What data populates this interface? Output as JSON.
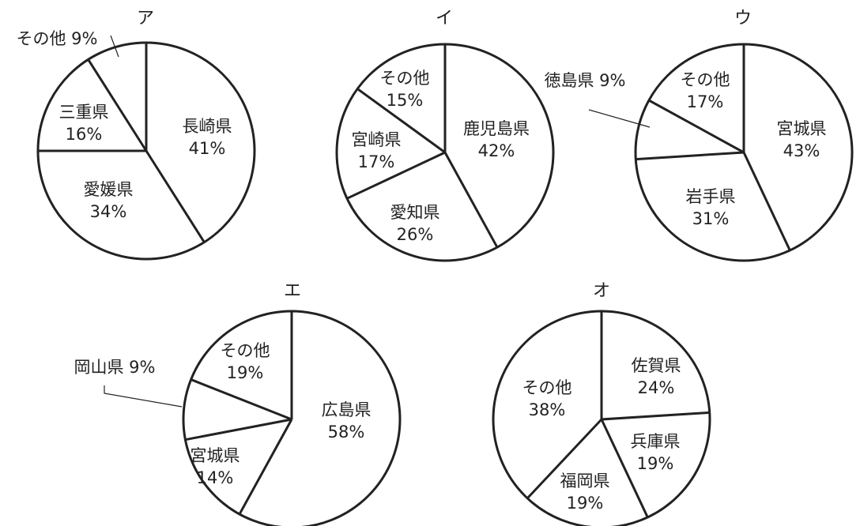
{
  "chart_data": [
    {
      "type": "pie",
      "title": "ア",
      "slices": [
        {
          "label": "長崎県",
          "value": 41
        },
        {
          "label": "愛媛県",
          "value": 34
        },
        {
          "label": "三重県",
          "value": 16
        },
        {
          "label": "その他",
          "value": 9
        }
      ],
      "slice_labels": [
        "長崎県",
        "41%",
        "愛媛県",
        "34%",
        "三重県",
        "16%"
      ],
      "callout_label": "その他 9%"
    },
    {
      "type": "pie",
      "title": "イ",
      "slices": [
        {
          "label": "鹿児島県",
          "value": 42
        },
        {
          "label": "愛知県",
          "value": 26
        },
        {
          "label": "宮崎県",
          "value": 17
        },
        {
          "label": "その他",
          "value": 15
        }
      ],
      "slice_labels": [
        "鹿児島県",
        "42%",
        "愛知県",
        "26%",
        "宮崎県",
        "17%",
        "その他",
        "15%"
      ]
    },
    {
      "type": "pie",
      "title": "ウ",
      "slices": [
        {
          "label": "宮城県",
          "value": 43
        },
        {
          "label": "岩手県",
          "value": 31
        },
        {
          "label": "徳島県",
          "value": 9
        },
        {
          "label": "その他",
          "value": 17
        }
      ],
      "slice_labels": [
        "宮城県",
        "43%",
        "岩手県",
        "31%",
        "その他",
        "17%"
      ],
      "callout_label": "徳島県 9%"
    },
    {
      "type": "pie",
      "title": "エ",
      "slices": [
        {
          "label": "広島県",
          "value": 58
        },
        {
          "label": "宮城県",
          "value": 14
        },
        {
          "label": "岡山県",
          "value": 9
        },
        {
          "label": "その他",
          "value": 19
        }
      ],
      "slice_labels": [
        "広島県",
        "58%",
        "宮城県",
        "14%",
        "その他",
        "19%"
      ],
      "callout_label": "岡山県 9%"
    },
    {
      "type": "pie",
      "title": "オ",
      "slices": [
        {
          "label": "佐賀県",
          "value": 24
        },
        {
          "label": "兵庫県",
          "value": 19
        },
        {
          "label": "福岡県",
          "value": 19
        },
        {
          "label": "その他",
          "value": 38
        }
      ],
      "slice_labels": [
        "佐賀県",
        "24%",
        "兵庫県",
        "19%",
        "福岡県",
        "19%",
        "その他",
        "38%"
      ]
    }
  ]
}
